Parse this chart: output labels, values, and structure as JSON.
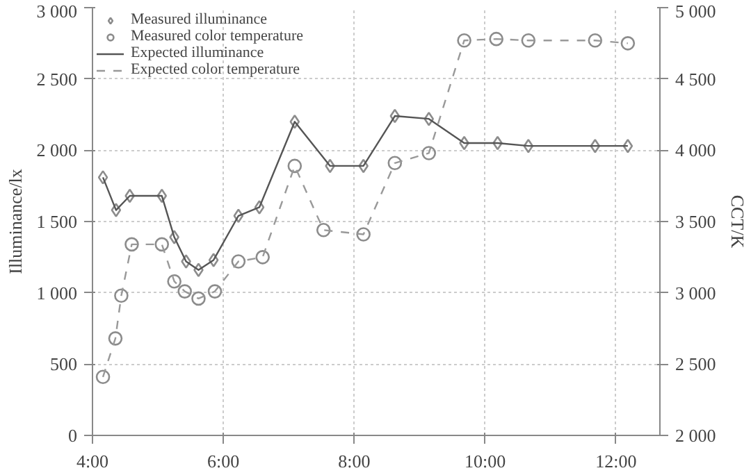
{
  "chart_data": {
    "type": "line",
    "xlabel": null,
    "ylabel": "Illuminance/lx",
    "y2label": "CCT/K",
    "xlim": [
      4,
      12.67
    ],
    "xticks": [
      {
        "value": 4,
        "label": "4:00"
      },
      {
        "value": 6,
        "label": "6:00"
      },
      {
        "value": 8,
        "label": "8:00"
      },
      {
        "value": 10,
        "label": "10:00"
      },
      {
        "value": 12,
        "label": "12:00"
      }
    ],
    "ylim": [
      0,
      3000
    ],
    "yticks": [
      0,
      500,
      {
        "value": 1000,
        "label": "1 000"
      },
      {
        "value": 1500,
        "label": "1 500"
      },
      {
        "value": 2000,
        "label": "2 000"
      },
      {
        "value": 2500,
        "label": "2 500"
      },
      {
        "value": 3000,
        "label": "3 000"
      }
    ],
    "y2lim": [
      2000,
      5000
    ],
    "y2ticks": [
      {
        "value": 2000,
        "label": "2 000"
      },
      {
        "value": 2500,
        "label": "2 500"
      },
      {
        "value": 3000,
        "label": "3 000"
      },
      {
        "value": 3500,
        "label": "3 500"
      },
      {
        "value": 4000,
        "label": "4 000"
      },
      {
        "value": 4500,
        "label": "4 500"
      },
      {
        "value": 5000,
        "label": "5 000"
      }
    ],
    "grid": true,
    "legend": "top left",
    "series": [
      {
        "name": "Measured illuminance",
        "type": "scatter",
        "marker": "diamond",
        "color": "#8c8c8c",
        "x": [
          4.16,
          4.36,
          4.57,
          5.06,
          5.25,
          5.43,
          5.62,
          5.85,
          6.23,
          6.55,
          7.09,
          7.63,
          8.14,
          8.62,
          9.14,
          9.68,
          10.19,
          10.66,
          11.68,
          12.18
        ],
        "values": [
          1810,
          1580,
          1680,
          1680,
          1390,
          1220,
          1160,
          1230,
          1540,
          1600,
          2200,
          1890,
          1890,
          2240,
          2220,
          2050,
          2050,
          2030,
          2030,
          2030
        ]
      },
      {
        "name": "Measured color temperature",
        "type": "scatter",
        "marker": "circle",
        "axis": "y2",
        "color": "#8c8c8c",
        "x": [
          4.16,
          4.35,
          4.44,
          4.6,
          5.06,
          5.25,
          5.41,
          5.62,
          5.87,
          6.23,
          6.6,
          7.09,
          7.53,
          8.14,
          8.62,
          9.14,
          9.68,
          10.17,
          10.66,
          11.68,
          12.18
        ],
        "values": [
          2410,
          2680,
          2980,
          3340,
          3340,
          3080,
          3010,
          2960,
          3010,
          3220,
          3250,
          3890,
          3440,
          3410,
          3910,
          3980,
          4770,
          4780,
          4770,
          4770,
          4750
        ]
      },
      {
        "name": "Expected illuminance",
        "line_style": "solid",
        "color": "#555555",
        "x": [
          4.16,
          4.36,
          4.57,
          5.06,
          5.25,
          5.43,
          5.62,
          5.85,
          6.23,
          6.55,
          7.09,
          7.63,
          8.14,
          8.62,
          9.14,
          9.68,
          10.19,
          10.66,
          11.68,
          12.18
        ],
        "values": [
          1810,
          1580,
          1680,
          1680,
          1390,
          1220,
          1160,
          1230,
          1540,
          1600,
          2200,
          1890,
          1890,
          2240,
          2220,
          2050,
          2050,
          2030,
          2030,
          2030
        ]
      },
      {
        "name": "Expected color temperature",
        "line_style": "dashed",
        "axis": "y2",
        "color": "#999999",
        "x": [
          4.16,
          4.35,
          4.44,
          4.6,
          5.06,
          5.25,
          5.41,
          5.62,
          5.87,
          6.23,
          6.6,
          7.09,
          7.53,
          8.14,
          8.62,
          9.14,
          9.68,
          10.17,
          10.66,
          11.68,
          12.18
        ],
        "values": [
          2410,
          2680,
          2980,
          3340,
          3340,
          3080,
          3010,
          2960,
          3010,
          3220,
          3250,
          3890,
          3440,
          3410,
          3910,
          3980,
          4770,
          4780,
          4770,
          4770,
          4750
        ]
      }
    ]
  }
}
